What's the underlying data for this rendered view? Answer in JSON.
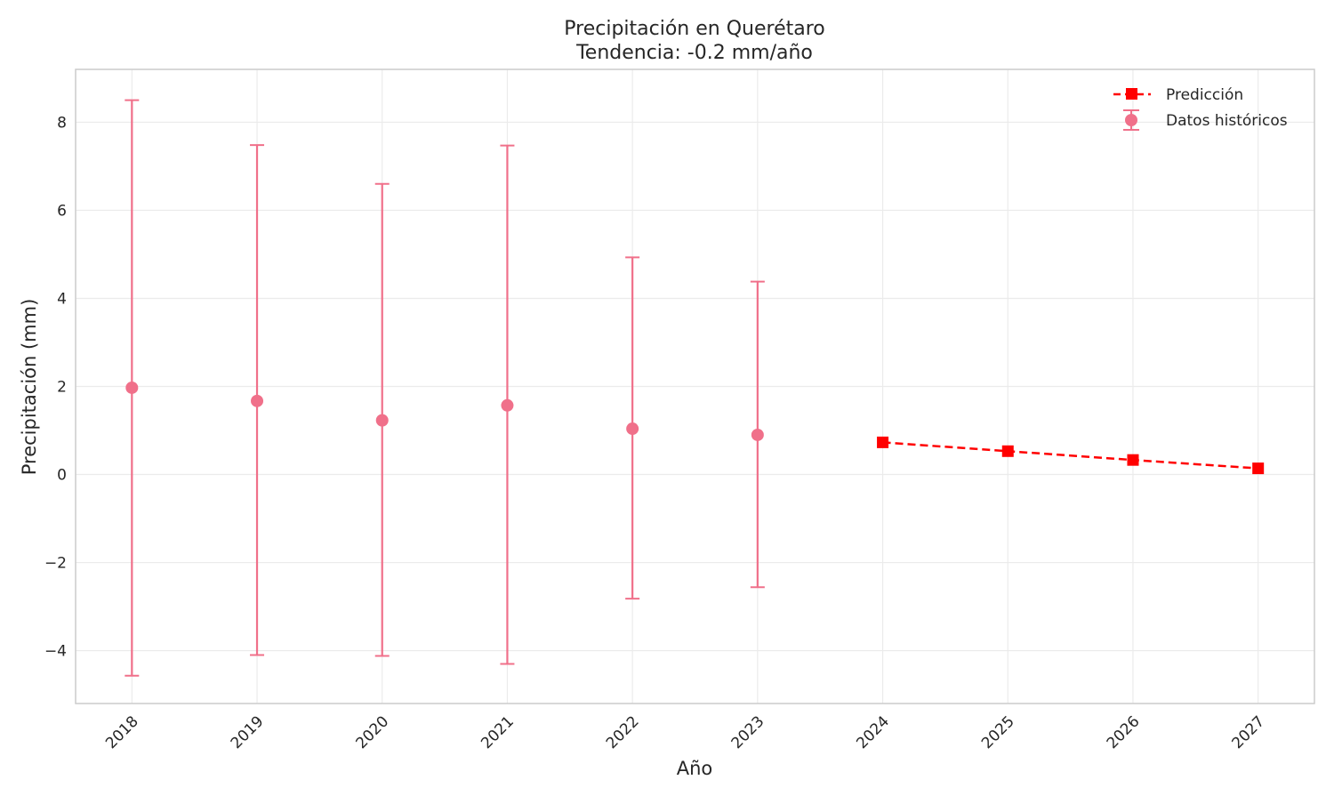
{
  "chart_data": {
    "type": "line",
    "title": "Precipitación en Querétaro",
    "subtitle": "Tendencia: -0.2 mm/año",
    "xlabel": "Año",
    "ylabel": "Precipitación (mm)",
    "xlim": [
      2017.55,
      2027.45
    ],
    "ylim": [
      -5.2,
      9.2
    ],
    "x_ticks": [
      "2018",
      "2019",
      "2020",
      "2021",
      "2022",
      "2023",
      "2024",
      "2025",
      "2026",
      "2027"
    ],
    "y_ticks": [
      {
        "value": -4,
        "label": "−4"
      },
      {
        "value": -2,
        "label": "−2"
      },
      {
        "value": 0,
        "label": "0"
      },
      {
        "value": 2,
        "label": "2"
      },
      {
        "value": 4,
        "label": "4"
      },
      {
        "value": 6,
        "label": "6"
      },
      {
        "value": 8,
        "label": "8"
      }
    ],
    "grid": true,
    "legend_position": "top-right",
    "series": [
      {
        "name": "Datos históricos",
        "kind": "errorbar",
        "color": "#f0708a",
        "x": [
          2018,
          2019,
          2020,
          2021,
          2022,
          2023
        ],
        "y": [
          1.97,
          1.67,
          1.23,
          1.57,
          1.04,
          0.9
        ],
        "err_low": [
          -4.57,
          -4.1,
          -4.12,
          -4.3,
          -2.82,
          -2.56
        ],
        "err_high": [
          8.5,
          7.48,
          6.6,
          7.47,
          4.93,
          4.38
        ]
      },
      {
        "name": "Predicción",
        "kind": "line",
        "color": "#ff0000",
        "x": [
          2024,
          2025,
          2026,
          2027
        ],
        "y": [
          0.73,
          0.53,
          0.33,
          0.14
        ]
      }
    ]
  }
}
